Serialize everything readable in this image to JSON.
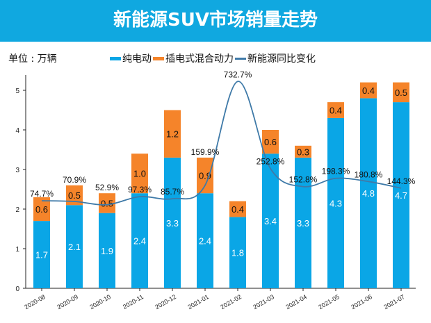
{
  "header": {
    "title": "新能源SUV市场销量走势"
  },
  "unit_label": "单位 : 万辆",
  "colors": {
    "banner": "#10a8e0",
    "bev": "#0aa6e6",
    "phev": "#f5842a",
    "line": "#3f7aa8"
  },
  "chart_data": {
    "type": "bar",
    "stacked": true,
    "title": "新能源SUV市场销量走势",
    "ylabel": "单位 : 万辆",
    "ylim": [
      0,
      5.5
    ],
    "yticks": [
      0,
      1,
      2,
      3,
      4,
      5
    ],
    "legend_position": "top",
    "grid": false,
    "categories": [
      "2020-08",
      "2020-09",
      "2020-10",
      "2020-11",
      "2020-12",
      "2021-01",
      "2021-02",
      "2021-03",
      "2021-04",
      "2021-05",
      "2021-06",
      "2021-07"
    ],
    "series": [
      {
        "name": "纯电动",
        "type": "bar",
        "values": [
          1.7,
          2.1,
          1.9,
          2.4,
          3.3,
          2.4,
          1.8,
          3.4,
          3.3,
          4.3,
          4.8,
          4.7
        ]
      },
      {
        "name": "插电式混合动力",
        "type": "bar",
        "values": [
          0.6,
          0.5,
          0.5,
          1.0,
          1.2,
          0.9,
          0.4,
          0.6,
          0.3,
          0.4,
          0.4,
          0.5
        ]
      },
      {
        "name": "新能源同比变化",
        "type": "line",
        "axis": "secondary",
        "values": [
          74.7,
          70.9,
          52.9,
          97.3,
          85.7,
          159.9,
          732.7,
          252.8,
          152.8,
          198.3,
          180.8,
          144.3
        ],
        "labels": [
          "74.7%",
          "70.9%",
          "52.9%",
          "97.3%",
          "85.7%",
          "159.9%",
          "732.7%",
          "252.8%",
          "152.8%",
          "198.3%",
          "180.8%",
          "144.3%"
        ]
      }
    ]
  }
}
